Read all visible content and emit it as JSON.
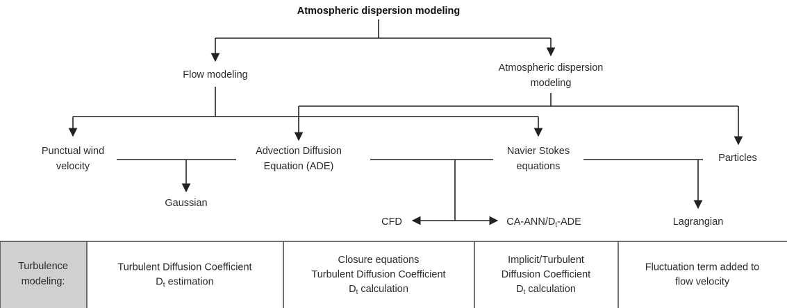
{
  "title": "Atmospheric dispersion modeling",
  "nodes": {
    "flow_modeling": [
      "Flow modeling"
    ],
    "atmospheric_dispersion_modeling": [
      "Atmospheric dispersion",
      "modeling"
    ],
    "punctual_wind": [
      "Punctual wind",
      "velocity"
    ],
    "ade": [
      "Advection Diffusion",
      "Equation (ADE)"
    ],
    "navier_stokes": [
      "Navier Stokes",
      "equations"
    ],
    "particles": [
      "Particles"
    ],
    "gaussian": [
      "Gaussian"
    ],
    "cfd": [
      "CFD"
    ],
    "ca_ann": {
      "pre": "CA-ANN/D",
      "sub": "t",
      "post": "-ADE"
    },
    "lagrangian": [
      "Lagrangian"
    ]
  },
  "table": {
    "header": [
      "Turbulence",
      "modeling:"
    ],
    "cells": [
      [
        {
          "text": "Turbulent Diffusion Coefficient"
        },
        {
          "pre": "D",
          "sub": "t",
          "post": " estimation"
        }
      ],
      [
        {
          "text": "Closure equations"
        },
        {
          "text": "Turbulent Diffusion Coefficient"
        },
        {
          "pre": "D",
          "sub": "t",
          "post": " calculation"
        }
      ],
      [
        {
          "text": "Implicit/Turbulent"
        },
        {
          "text": "Diffusion Coefficient"
        },
        {
          "pre": "D",
          "sub": "t",
          "post": " calculation"
        }
      ],
      [
        {
          "text": "Fluctuation term added to"
        },
        {
          "text": "flow velocity"
        }
      ]
    ]
  }
}
